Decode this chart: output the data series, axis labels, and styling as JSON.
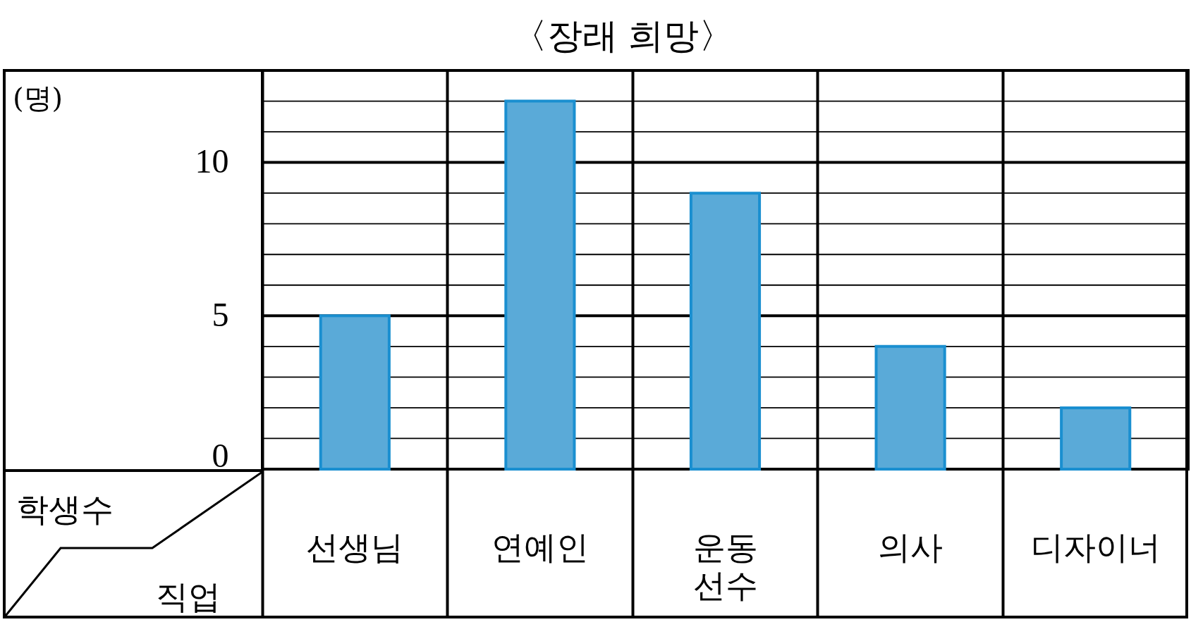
{
  "chart_data": {
    "type": "bar",
    "title": "〈장래 희망〉",
    "xlabel": "직업",
    "ylabel": "학생수",
    "annotations": [
      "(명)"
    ],
    "categories": [
      "선생님",
      "연예인",
      "운동 선수",
      "의사",
      "디자이너"
    ],
    "values": [
      5,
      12,
      9,
      4,
      2
    ],
    "color": "#5aaad8",
    "ylim": [
      0,
      13
    ],
    "yticks": [
      0,
      {
        "value": 1,
        "label": null
      },
      {
        "value": 2,
        "label": null
      },
      {
        "value": 3,
        "label": null
      },
      {
        "value": 4,
        "label": null
      },
      5,
      {
        "value": 6,
        "label": null
      },
      {
        "value": 7,
        "label": null
      },
      {
        "value": 8,
        "label": null
      },
      {
        "value": 9,
        "label": null
      },
      10,
      {
        "value": 11,
        "label": null
      },
      {
        "value": 12,
        "label": null
      }
    ],
    "grid": true
  }
}
